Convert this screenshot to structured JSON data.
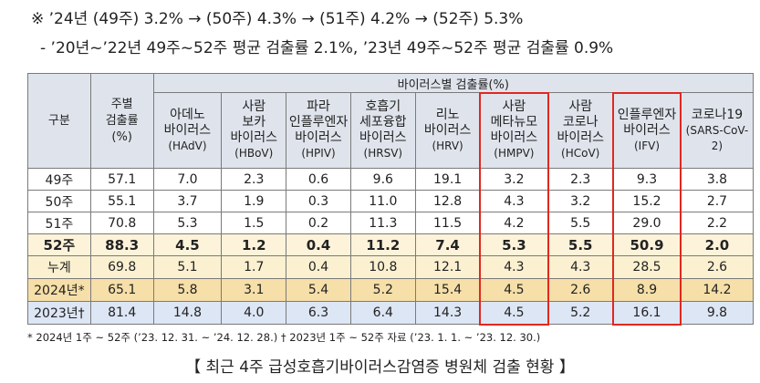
{
  "summary": {
    "line1": "※ ’24년 (49주) 3.2% → (50주) 4.3% → (51주) 4.2% → (52주) 5.3%",
    "line2": "- ’20년~’22년 49주~52주 평균 검출률 2.1%, ’23년 49주~52주 평균 검출률 0.9%"
  },
  "table": {
    "header_group": "구분",
    "header_weekly": [
      "주별",
      "검출률",
      "(%)"
    ],
    "header_virus_group": "바이러스별 검출률(%)",
    "columns": [
      {
        "lines": [
          "아데노",
          "바이러스"
        ],
        "abbr": "(HAdV)"
      },
      {
        "lines": [
          "사람",
          "보카",
          "바이러스"
        ],
        "abbr": "(HBoV)"
      },
      {
        "lines": [
          "파라",
          "인플루엔자",
          "바이러스"
        ],
        "abbr": "(HPIV)"
      },
      {
        "lines": [
          "호흡기",
          "세포융합",
          "바이러스"
        ],
        "abbr": "(HRSV)"
      },
      {
        "lines": [
          "리노",
          "바이러스"
        ],
        "abbr": "(HRV)"
      },
      {
        "lines": [
          "사람",
          "메타뉴모",
          "바이러스"
        ],
        "abbr": "(HMPV)"
      },
      {
        "lines": [
          "사람",
          "코로나",
          "바이러스"
        ],
        "abbr": "(HCoV)"
      },
      {
        "lines": [
          "인플루엔자",
          "바이러스"
        ],
        "abbr": "(IFV)"
      },
      {
        "lines": [
          "코로나19"
        ],
        "abbr": "(SARS-CoV-2)"
      }
    ],
    "rows": [
      {
        "label": "49주",
        "weekly": "57.1",
        "values": [
          "7.0",
          "2.3",
          "0.6",
          "9.6",
          "19.1",
          "3.2",
          "2.3",
          "9.3",
          "3.8"
        ]
      },
      {
        "label": "50주",
        "weekly": "55.1",
        "values": [
          "3.7",
          "1.9",
          "0.3",
          "11.0",
          "12.8",
          "4.3",
          "3.2",
          "15.2",
          "2.7"
        ]
      },
      {
        "label": "51주",
        "weekly": "70.8",
        "values": [
          "5.3",
          "1.5",
          "0.2",
          "11.3",
          "11.5",
          "4.2",
          "5.5",
          "29.0",
          "2.2"
        ]
      },
      {
        "label": "52주",
        "weekly": "88.3",
        "values": [
          "4.5",
          "1.2",
          "0.4",
          "11.2",
          "7.4",
          "5.3",
          "5.5",
          "50.9",
          "2.0"
        ]
      },
      {
        "label": "누계",
        "weekly": "69.8",
        "values": [
          "5.1",
          "1.7",
          "0.4",
          "10.8",
          "12.1",
          "4.3",
          "4.3",
          "28.5",
          "2.6"
        ]
      },
      {
        "label": "2024년*",
        "weekly": "65.1",
        "values": [
          "5.8",
          "3.1",
          "5.4",
          "5.2",
          "15.4",
          "4.5",
          "2.6",
          "8.9",
          "14.2"
        ]
      },
      {
        "label": "2023년†",
        "weekly": "81.4",
        "values": [
          "14.8",
          "4.0",
          "6.3",
          "6.4",
          "14.3",
          "4.5",
          "5.2",
          "16.1",
          "9.8"
        ]
      }
    ]
  },
  "footnote": "* 2024년 1주 ~ 52주 (’23. 12. 31. ~ ’24. 12. 28.)        † 2023년 1주 ~ 52주 자료 (’23. 1. 1. ~ ’23. 12. 30.)",
  "caption": "【 최근 4주 급성호흡기바이러스감염증 병원체 검출 현황 】",
  "colors": {
    "header_bg": "#dfe4ec",
    "highlight_border": "#e0281f",
    "row_2024_bg": "#f6dfa8",
    "row_2023_bg": "#dde6f5"
  }
}
